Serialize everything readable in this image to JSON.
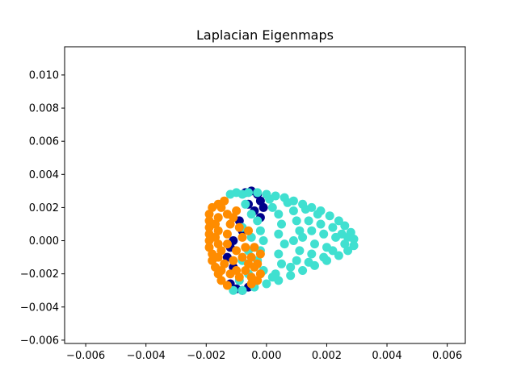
{
  "chart_data": {
    "type": "scatter",
    "title": "Laplacian Eigenmaps",
    "xlabel": "",
    "ylabel": "",
    "xlim": [
      -0.0067,
      0.0066
    ],
    "ylim": [
      -0.0062,
      0.0117
    ],
    "xticks": [
      -0.006,
      -0.004,
      -0.002,
      0.0,
      0.002,
      0.004,
      0.006
    ],
    "xtick_labels": [
      "−0.006",
      "−0.004",
      "−0.002",
      "0.000",
      "0.002",
      "0.004",
      "0.006"
    ],
    "yticks": [
      -0.006,
      -0.004,
      -0.002,
      0.0,
      0.002,
      0.004,
      0.006,
      0.008,
      0.01
    ],
    "ytick_labels": [
      "−0.006",
      "−0.004",
      "−0.002",
      "0.000",
      "0.002",
      "0.004",
      "0.006",
      "0.008",
      "0.010"
    ],
    "grid": false,
    "series": [
      {
        "color": "#00008b",
        "points": [
          [
            -0.0007,
            0.0029
          ],
          [
            -0.0005,
            0.003
          ],
          [
            -0.0003,
            0.0028
          ],
          [
            -0.0002,
            0.0024
          ],
          [
            -0.0001,
            0.002
          ],
          [
            -0.0002,
            0.0014
          ],
          [
            -0.0004,
            0.0018
          ],
          [
            -0.0006,
            0.0022
          ],
          [
            -0.0011,
            0.0
          ],
          [
            -0.0012,
            -0.0004
          ],
          [
            -0.0013,
            -0.001
          ],
          [
            -0.0011,
            -0.0016
          ],
          [
            -0.0012,
            -0.0026
          ],
          [
            -0.001,
            -0.0029
          ],
          [
            -0.0008,
            -0.003
          ],
          [
            -0.0006,
            -0.0028
          ],
          [
            -0.0009,
            0.0012
          ],
          [
            -0.0008,
            0.0006
          ]
        ]
      },
      {
        "color": "#40e0d0",
        "points": [
          [
            -0.0012,
            0.0028
          ],
          [
            -0.001,
            0.0029
          ],
          [
            -0.0008,
            0.0028
          ],
          [
            -0.0006,
            0.0029
          ],
          [
            -0.0003,
            0.0029
          ],
          [
            0.0,
            0.0028
          ],
          [
            0.0003,
            0.0027
          ],
          [
            0.0006,
            0.0026
          ],
          [
            0.0009,
            0.0024
          ],
          [
            0.0012,
            0.0022
          ],
          [
            0.0015,
            0.002
          ],
          [
            0.0018,
            0.0018
          ],
          [
            0.0021,
            0.0015
          ],
          [
            0.0024,
            0.0012
          ],
          [
            0.0026,
            0.0009
          ],
          [
            0.0028,
            0.0005
          ],
          [
            0.0029,
            0.0001
          ],
          [
            0.0029,
            -0.0003
          ],
          [
            0.0027,
            -0.0006
          ],
          [
            0.0024,
            -0.0009
          ],
          [
            0.002,
            -0.0012
          ],
          [
            0.0016,
            -0.0015
          ],
          [
            0.0012,
            -0.0018
          ],
          [
            0.0008,
            -0.0021
          ],
          [
            0.0004,
            -0.0024
          ],
          [
            0.0,
            -0.0026
          ],
          [
            -0.0004,
            -0.0028
          ],
          [
            -0.0008,
            -0.003
          ],
          [
            -0.0011,
            -0.003
          ],
          [
            -0.0009,
            -0.0024
          ],
          [
            -0.0006,
            -0.002
          ],
          [
            -0.0007,
            0.0022
          ],
          [
            -0.0005,
            0.0016
          ],
          [
            -0.0003,
            0.0012
          ],
          [
            -0.0002,
            0.0006
          ],
          [
            -0.0001,
            0.0
          ],
          [
            -0.0002,
            -0.0006
          ],
          [
            -0.0003,
            -0.0012
          ],
          [
            -0.0001,
            -0.0018
          ],
          [
            0.0002,
            0.002
          ],
          [
            0.0004,
            0.0016
          ],
          [
            0.0005,
            0.001
          ],
          [
            0.0004,
            0.0004
          ],
          [
            0.0006,
            -0.0002
          ],
          [
            0.0004,
            -0.0008
          ],
          [
            0.0005,
            -0.0014
          ],
          [
            0.0003,
            -0.002
          ],
          [
            0.0009,
            0.0018
          ],
          [
            0.001,
            0.0012
          ],
          [
            0.0011,
            0.0006
          ],
          [
            0.0009,
            0.0
          ],
          [
            0.0011,
            -0.0006
          ],
          [
            0.001,
            -0.0012
          ],
          [
            0.0012,
            0.0002
          ],
          [
            0.0014,
            0.0012
          ],
          [
            0.0015,
            0.0006
          ],
          [
            0.0016,
            -0.0002
          ],
          [
            0.0015,
            -0.0008
          ],
          [
            0.0018,
            0.001
          ],
          [
            0.0019,
            0.0004
          ],
          [
            0.002,
            -0.0004
          ],
          [
            0.0022,
            0.0008
          ],
          [
            0.0023,
            0.0002
          ],
          [
            0.0022,
            -0.0006
          ],
          [
            0.0025,
            0.0004
          ],
          [
            0.0026,
            -0.0002
          ],
          [
            0.0027,
            0.0002
          ],
          [
            0.0017,
            0.0016
          ],
          [
            0.0013,
            0.0019
          ],
          [
            0.0007,
            0.0023
          ],
          [
            0.0001,
            0.0025
          ],
          [
            0.0019,
            -0.001
          ],
          [
            0.0014,
            -0.0013
          ],
          [
            0.0008,
            -0.0016
          ],
          [
            0.0002,
            -0.0022
          ],
          [
            -0.0008,
            -0.0012
          ],
          [
            -0.0006,
            -0.0006
          ],
          [
            -0.0005,
            0.0002
          ],
          [
            -0.0008,
            0.0008
          ]
        ]
      },
      {
        "color": "#ff8c00",
        "points": [
          [
            -0.0014,
            0.0024
          ],
          [
            -0.0016,
            0.0022
          ],
          [
            -0.0018,
            0.002
          ],
          [
            -0.0019,
            0.0016
          ],
          [
            -0.0019,
            0.0012
          ],
          [
            -0.0019,
            0.0008
          ],
          [
            -0.0019,
            0.0004
          ],
          [
            -0.0019,
            0.0
          ],
          [
            -0.0019,
            -0.0004
          ],
          [
            -0.0018,
            -0.0008
          ],
          [
            -0.0018,
            -0.0012
          ],
          [
            -0.0017,
            -0.0016
          ],
          [
            -0.0016,
            -0.002
          ],
          [
            -0.0015,
            -0.0024
          ],
          [
            -0.0013,
            -0.0027
          ],
          [
            -0.0015,
            0.002
          ],
          [
            -0.0016,
            0.0014
          ],
          [
            -0.0017,
            0.001
          ],
          [
            -0.0016,
            0.0006
          ],
          [
            -0.0017,
            0.0002
          ],
          [
            -0.0016,
            -0.0002
          ],
          [
            -0.0015,
            -0.0006
          ],
          [
            -0.0016,
            -0.001
          ],
          [
            -0.0014,
            -0.0014
          ],
          [
            -0.0015,
            -0.0018
          ],
          [
            -0.0012,
            -0.002
          ],
          [
            -0.0013,
            0.0016
          ],
          [
            -0.0012,
            0.001
          ],
          [
            -0.0013,
            0.0004
          ],
          [
            -0.0013,
            -0.0002
          ],
          [
            -0.001,
            -0.0006
          ],
          [
            -0.0011,
            -0.0012
          ],
          [
            -0.001,
            -0.0018
          ],
          [
            -0.0009,
            -0.0022
          ],
          [
            -0.001,
            0.0018
          ],
          [
            -0.0011,
            0.0014
          ],
          [
            -0.0009,
            0.0008
          ],
          [
            -0.0008,
            0.0002
          ],
          [
            -0.0007,
            -0.0004
          ],
          [
            -0.0008,
            -0.001
          ],
          [
            -0.0006,
            -0.0014
          ],
          [
            -0.0007,
            -0.0018
          ],
          [
            -0.0005,
            -0.0022
          ],
          [
            -0.0004,
            -0.0016
          ],
          [
            -0.0005,
            -0.001
          ],
          [
            -0.0004,
            -0.0004
          ],
          [
            -0.0006,
            0.0006
          ],
          [
            -0.0005,
            -0.0026
          ],
          [
            -0.0003,
            -0.0024
          ],
          [
            -0.0002,
            -0.002
          ],
          [
            -0.0003,
            -0.0014
          ],
          [
            -0.0002,
            -0.0008
          ]
        ]
      }
    ]
  }
}
